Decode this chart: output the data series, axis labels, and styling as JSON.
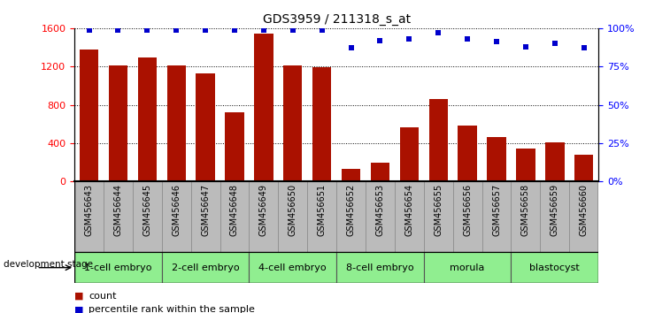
{
  "title": "GDS3959 / 211318_s_at",
  "categories": [
    "GSM456643",
    "GSM456644",
    "GSM456645",
    "GSM456646",
    "GSM456647",
    "GSM456648",
    "GSM456649",
    "GSM456650",
    "GSM456651",
    "GSM456652",
    "GSM456653",
    "GSM456654",
    "GSM456655",
    "GSM456656",
    "GSM456657",
    "GSM456658",
    "GSM456659",
    "GSM456660"
  ],
  "counts": [
    1380,
    1210,
    1290,
    1210,
    1130,
    720,
    1540,
    1210,
    1190,
    130,
    200,
    570,
    860,
    580,
    460,
    340,
    410,
    280
  ],
  "percentiles": [
    99,
    99,
    99,
    99,
    99,
    99,
    99,
    99,
    99,
    87,
    92,
    93,
    97,
    93,
    91,
    88,
    90,
    87
  ],
  "bar_color": "#aa1100",
  "dot_color": "#0000cc",
  "ylim_left": [
    0,
    1600
  ],
  "ylim_right": [
    0,
    100
  ],
  "yticks_left": [
    0,
    400,
    800,
    1200,
    1600
  ],
  "yticks_right": [
    0,
    25,
    50,
    75,
    100
  ],
  "ytick_labels_right": [
    "0%",
    "25%",
    "50%",
    "75%",
    "100%"
  ],
  "stages": [
    {
      "label": "1-cell embryo",
      "start": 0,
      "end": 3
    },
    {
      "label": "2-cell embryo",
      "start": 3,
      "end": 6
    },
    {
      "label": "4-cell embryo",
      "start": 6,
      "end": 9
    },
    {
      "label": "8-cell embryo",
      "start": 9,
      "end": 12
    },
    {
      "label": "morula",
      "start": 12,
      "end": 15
    },
    {
      "label": "blastocyst",
      "start": 15,
      "end": 18
    }
  ],
  "stage_color": "#90ee90",
  "stage_border_color": "#555555",
  "xticklabel_bg": "#bbbbbb",
  "xticklabel_border": "#888888",
  "dev_stage_label": "development stage",
  "legend_count_label": "count",
  "legend_pct_label": "percentile rank within the sample",
  "title_fontsize": 10,
  "tick_fontsize": 7,
  "stage_fontsize": 8,
  "legend_fontsize": 8
}
